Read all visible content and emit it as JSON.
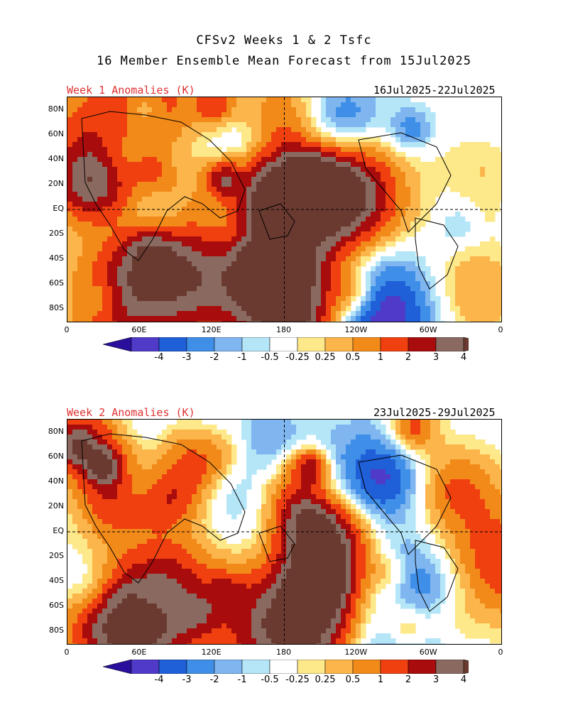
{
  "title_line1": "CFSv2 Weeks 1 & 2 Tsfc",
  "title_line2": "16 Member Ensemble Mean Forecast from 15Jul2025",
  "panels": [
    {
      "label": "Week 1 Anomalies (K)",
      "dates": "16Jul2025-22Jul2025"
    },
    {
      "label": "Week 2 Anomalies (K)",
      "dates": "23Jul2025-29Jul2025"
    }
  ],
  "lat_labels": [
    "80N",
    "60N",
    "40N",
    "20N",
    "EQ",
    "20S",
    "40S",
    "60S",
    "80S"
  ],
  "lon_labels": [
    "0",
    "60E",
    "120E",
    "180",
    "120W",
    "60W",
    "0"
  ],
  "colorbar": {
    "labels": [
      "-4",
      "-3",
      "-2",
      "-1",
      "-0.5",
      "-0.25",
      "0.25",
      "0.5",
      "1",
      "2",
      "3",
      "4"
    ],
    "colors": [
      "#2a0f9c",
      "#4f3bc8",
      "#1f5fd8",
      "#3f8fe8",
      "#7fb6f0",
      "#b4e6f8",
      "#ffffff",
      "#fde88a",
      "#fbb54a",
      "#f28a1a",
      "#f04010",
      "#a80c0c",
      "#8a6a60",
      "#6a3a30"
    ]
  }
}
